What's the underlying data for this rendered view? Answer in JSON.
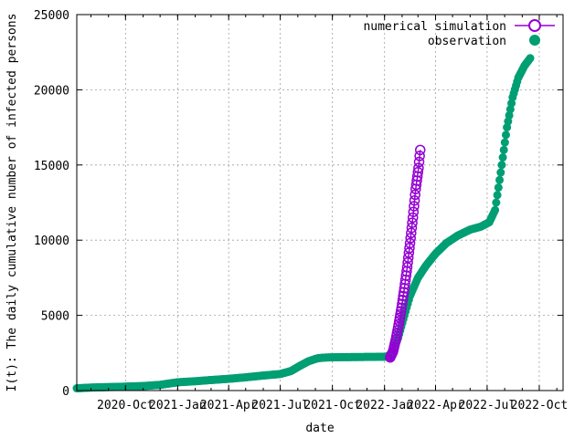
{
  "chart_data": {
    "type": "scatter",
    "xlabel": "date",
    "ylabel": "I(t): The daily cumulative number of infected persons",
    "x_range": [
      "2020-07-07",
      "2022-11-12"
    ],
    "ylim": [
      0,
      25000
    ],
    "y_ticks": [
      0,
      5000,
      10000,
      15000,
      20000,
      25000
    ],
    "x_ticks": [
      {
        "date": "2020-10-01",
        "label": "2020-Oct"
      },
      {
        "date": "2021-01-01",
        "label": "2021-Jan"
      },
      {
        "date": "2021-04-01",
        "label": "2021-Apr"
      },
      {
        "date": "2021-07-01",
        "label": "2021-Jul"
      },
      {
        "date": "2021-10-01",
        "label": "2021-Oct"
      },
      {
        "date": "2022-01-01",
        "label": "2022-Jan"
      },
      {
        "date": "2022-04-01",
        "label": "2022-Apr"
      },
      {
        "date": "2022-07-01",
        "label": "2022-Jul"
      },
      {
        "date": "2022-10-01",
        "label": "2022-Oct"
      }
    ],
    "grid": true,
    "legend_position": "top-right",
    "series": [
      {
        "name": "numerical simulation",
        "color": "#9400d3",
        "marker": "open-circle-line",
        "points": [
          [
            "2022-01-11",
            2200
          ],
          [
            "2022-01-16",
            2600
          ],
          [
            "2022-01-21",
            3400
          ],
          [
            "2022-01-26",
            4400
          ],
          [
            "2022-01-31",
            5500
          ],
          [
            "2022-02-05",
            6800
          ],
          [
            "2022-02-10",
            8200
          ],
          [
            "2022-02-15",
            9800
          ],
          [
            "2022-02-20",
            11500
          ],
          [
            "2022-02-25",
            13400
          ],
          [
            "2022-03-02",
            14800
          ],
          [
            "2022-03-05",
            16000
          ]
        ]
      },
      {
        "name": "observation",
        "color": "#009e73",
        "marker": "filled-circle",
        "points": [
          [
            "2020-07-07",
            150
          ],
          [
            "2020-08-01",
            200
          ],
          [
            "2020-09-01",
            230
          ],
          [
            "2020-10-01",
            260
          ],
          [
            "2020-11-01",
            300
          ],
          [
            "2020-12-01",
            380
          ],
          [
            "2021-01-01",
            550
          ],
          [
            "2021-02-01",
            620
          ],
          [
            "2021-03-01",
            700
          ],
          [
            "2021-04-01",
            780
          ],
          [
            "2021-05-01",
            880
          ],
          [
            "2021-06-01",
            1000
          ],
          [
            "2021-07-01",
            1100
          ],
          [
            "2021-07-20",
            1300
          ],
          [
            "2021-08-05",
            1650
          ],
          [
            "2021-08-20",
            1950
          ],
          [
            "2021-09-05",
            2150
          ],
          [
            "2021-09-20",
            2200
          ],
          [
            "2021-10-15",
            2220
          ],
          [
            "2021-11-15",
            2230
          ],
          [
            "2021-12-15",
            2240
          ],
          [
            "2022-01-05",
            2250
          ],
          [
            "2022-01-15",
            2500
          ],
          [
            "2022-01-25",
            3500
          ],
          [
            "2022-02-05",
            5000
          ],
          [
            "2022-02-15",
            6300
          ],
          [
            "2022-03-01",
            7500
          ],
          [
            "2022-03-15",
            8300
          ],
          [
            "2022-04-01",
            9100
          ],
          [
            "2022-04-20",
            9800
          ],
          [
            "2022-05-10",
            10300
          ],
          [
            "2022-06-01",
            10700
          ],
          [
            "2022-06-20",
            10900
          ],
          [
            "2022-07-05",
            11200
          ],
          [
            "2022-07-15",
            12000
          ],
          [
            "2022-07-25",
            14500
          ],
          [
            "2022-08-05",
            17500
          ],
          [
            "2022-08-15",
            19500
          ],
          [
            "2022-08-25",
            20800
          ],
          [
            "2022-09-05",
            21600
          ],
          [
            "2022-09-15",
            22100
          ]
        ]
      }
    ]
  }
}
